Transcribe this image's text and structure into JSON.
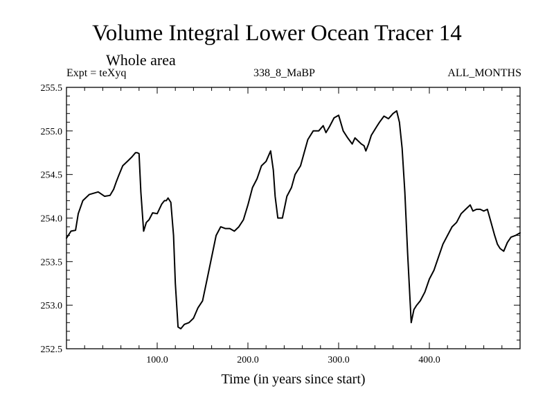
{
  "chart_data": {
    "type": "line",
    "title": "Volume Integral Lower Ocean Tracer 14",
    "subtitle": "Whole area",
    "expt_label": "Expt = teXyq",
    "period_label": "338_8_MaBP",
    "months_label": "ALL_MONTHS",
    "xlabel": "Time (in years since start)",
    "ylabel": "",
    "xlim": [
      0,
      500
    ],
    "ylim": [
      252.5,
      255.5
    ],
    "xticks": [
      100,
      200,
      300,
      400
    ],
    "xtick_labels": [
      "100.0",
      "200.0",
      "300.0",
      "400.0"
    ],
    "yticks": [
      252.5,
      253.0,
      253.5,
      254.0,
      254.5,
      255.0,
      255.5
    ],
    "ytick_labels": [
      "252.5",
      "253.0",
      "253.5",
      "254.0",
      "254.5",
      "255.0",
      "255.5"
    ],
    "grid": false,
    "series": [
      {
        "name": "Volume integral",
        "color": "#000000",
        "x": [
          0,
          5,
          10,
          13,
          18,
          25,
          35,
          42,
          48,
          52,
          55,
          58,
          62,
          68,
          72,
          76,
          78,
          80,
          82,
          85,
          88,
          91,
          95,
          100,
          105,
          108,
          110,
          112,
          115,
          118,
          120,
          123,
          126,
          130,
          135,
          140,
          145,
          150,
          155,
          160,
          165,
          170,
          175,
          180,
          185,
          190,
          195,
          200,
          205,
          210,
          215,
          220,
          225,
          228,
          230,
          233,
          238,
          240,
          243,
          248,
          252,
          258,
          262,
          266,
          272,
          278,
          283,
          286,
          290,
          295,
          300,
          305,
          310,
          315,
          318,
          322,
          325,
          328,
          330,
          333,
          336,
          339,
          342,
          345,
          350,
          355,
          360,
          364,
          367,
          370,
          373,
          376,
          378,
          380,
          383,
          386,
          390,
          395,
          400,
          405,
          410,
          415,
          420,
          425,
          430,
          435,
          440,
          445,
          448,
          452,
          456,
          460,
          464,
          468,
          472,
          475,
          478,
          482,
          486,
          490,
          495,
          500
        ],
        "values": [
          253.77,
          253.85,
          253.86,
          254.05,
          254.2,
          254.27,
          254.3,
          254.25,
          254.26,
          254.33,
          254.42,
          254.5,
          254.6,
          254.66,
          254.7,
          254.75,
          254.75,
          254.74,
          254.3,
          253.85,
          253.95,
          253.98,
          254.06,
          254.05,
          254.16,
          254.2,
          254.2,
          254.23,
          254.18,
          253.8,
          253.25,
          252.75,
          252.73,
          252.78,
          252.8,
          252.85,
          252.97,
          253.05,
          253.3,
          253.55,
          253.8,
          253.9,
          253.88,
          253.88,
          253.85,
          253.9,
          253.98,
          254.15,
          254.35,
          254.45,
          254.6,
          254.65,
          254.77,
          254.55,
          254.25,
          254.0,
          254.0,
          254.1,
          254.25,
          254.35,
          254.5,
          254.6,
          254.75,
          254.9,
          255.0,
          255.0,
          255.06,
          254.98,
          255.05,
          255.15,
          255.18,
          255.0,
          254.92,
          254.85,
          254.92,
          254.88,
          254.85,
          254.83,
          254.77,
          254.85,
          254.95,
          255.0,
          255.05,
          255.1,
          255.17,
          255.14,
          255.2,
          255.23,
          255.1,
          254.8,
          254.3,
          253.6,
          253.2,
          252.8,
          252.95,
          253.0,
          253.05,
          253.15,
          253.3,
          253.4,
          253.55,
          253.7,
          253.8,
          253.9,
          253.95,
          254.05,
          254.1,
          254.15,
          254.08,
          254.1,
          254.1,
          254.08,
          254.1,
          253.95,
          253.8,
          253.7,
          253.65,
          253.62,
          253.72,
          253.78,
          253.8,
          253.83
        ]
      }
    ]
  }
}
